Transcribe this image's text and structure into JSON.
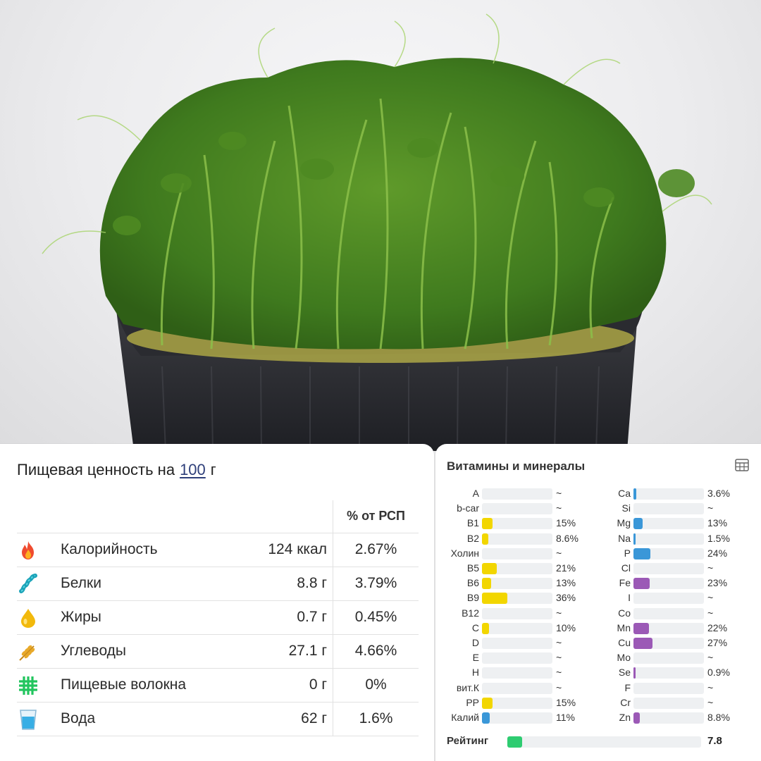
{
  "photo": {
    "subject": "pea-microgreens-photo"
  },
  "nutrition": {
    "title_prefix": "Пищевая ценность на",
    "title_amount": "100",
    "title_unit": "г",
    "pct_header": "% от РСП",
    "rows": [
      {
        "icon": "fire-icon",
        "name": "Калорийность",
        "value": "124 ккал",
        "pct": "2.67%"
      },
      {
        "icon": "protein-icon",
        "name": "Белки",
        "value": "8.8 г",
        "pct": "3.79%"
      },
      {
        "icon": "oil-drop-icon",
        "name": "Жиры",
        "value": "0.7 г",
        "pct": "0.45%"
      },
      {
        "icon": "wheat-icon",
        "name": "Углеводы",
        "value": "27.1 г",
        "pct": "4.66%"
      },
      {
        "icon": "fiber-grid-icon",
        "name": "Пищевые волокна",
        "value": "0 г",
        "pct": "0%"
      },
      {
        "icon": "water-glass-icon",
        "name": "Вода",
        "value": "62 г",
        "pct": "1.6%"
      }
    ]
  },
  "vitamins": {
    "title": "Витамины и минералы",
    "colors": {
      "vitamin": "#f2d600",
      "mineral_blue": "#3a97d8",
      "mineral_purple": "#9b59b6",
      "rating": "#2ecc71",
      "track": "#eef0f2"
    },
    "left": [
      {
        "label": "A",
        "value": "~",
        "percent": 0,
        "color": "vitamin"
      },
      {
        "label": "b-car",
        "value": "~",
        "percent": 0,
        "color": "vitamin"
      },
      {
        "label": "B1",
        "value": "15%",
        "percent": 15,
        "color": "vitamin"
      },
      {
        "label": "B2",
        "value": "8.6%",
        "percent": 8.6,
        "color": "vitamin"
      },
      {
        "label": "Холин",
        "value": "~",
        "percent": 0,
        "color": "vitamin"
      },
      {
        "label": "B5",
        "value": "21%",
        "percent": 21,
        "color": "vitamin"
      },
      {
        "label": "B6",
        "value": "13%",
        "percent": 13,
        "color": "vitamin"
      },
      {
        "label": "B9",
        "value": "36%",
        "percent": 36,
        "color": "vitamin"
      },
      {
        "label": "B12",
        "value": "~",
        "percent": 0,
        "color": "vitamin"
      },
      {
        "label": "C",
        "value": "10%",
        "percent": 10,
        "color": "vitamin"
      },
      {
        "label": "D",
        "value": "~",
        "percent": 0,
        "color": "vitamin"
      },
      {
        "label": "E",
        "value": "~",
        "percent": 0,
        "color": "vitamin"
      },
      {
        "label": "H",
        "value": "~",
        "percent": 0,
        "color": "vitamin"
      },
      {
        "label": "вит.К",
        "value": "~",
        "percent": 0,
        "color": "vitamin"
      },
      {
        "label": "PP",
        "value": "15%",
        "percent": 15,
        "color": "vitamin"
      },
      {
        "label": "Калий",
        "value": "11%",
        "percent": 11,
        "color": "mineral_blue"
      }
    ],
    "right": [
      {
        "label": "Ca",
        "value": "3.6%",
        "percent": 3.6,
        "color": "mineral_blue"
      },
      {
        "label": "Si",
        "value": "~",
        "percent": 0,
        "color": "mineral_blue"
      },
      {
        "label": "Mg",
        "value": "13%",
        "percent": 13,
        "color": "mineral_blue"
      },
      {
        "label": "Na",
        "value": "1.5%",
        "percent": 1.5,
        "color": "mineral_blue"
      },
      {
        "label": "P",
        "value": "24%",
        "percent": 24,
        "color": "mineral_blue"
      },
      {
        "label": "Cl",
        "value": "~",
        "percent": 0,
        "color": "mineral_blue"
      },
      {
        "label": "Fe",
        "value": "23%",
        "percent": 23,
        "color": "mineral_purple"
      },
      {
        "label": "I",
        "value": "~",
        "percent": 0,
        "color": "mineral_purple"
      },
      {
        "label": "Co",
        "value": "~",
        "percent": 0,
        "color": "mineral_purple"
      },
      {
        "label": "Mn",
        "value": "22%",
        "percent": 22,
        "color": "mineral_purple"
      },
      {
        "label": "Cu",
        "value": "27%",
        "percent": 27,
        "color": "mineral_purple"
      },
      {
        "label": "Mo",
        "value": "~",
        "percent": 0,
        "color": "mineral_purple"
      },
      {
        "label": "Se",
        "value": "0.9%",
        "percent": 0.9,
        "color": "mineral_purple"
      },
      {
        "label": "F",
        "value": "~",
        "percent": 0,
        "color": "mineral_purple"
      },
      {
        "label": "Cr",
        "value": "~",
        "percent": 0,
        "color": "mineral_purple"
      },
      {
        "label": "Zn",
        "value": "8.8%",
        "percent": 8.8,
        "color": "mineral_purple"
      }
    ],
    "rating": {
      "label": "Рейтинг",
      "value": "7.8",
      "score": 7.8,
      "max": 100
    }
  }
}
